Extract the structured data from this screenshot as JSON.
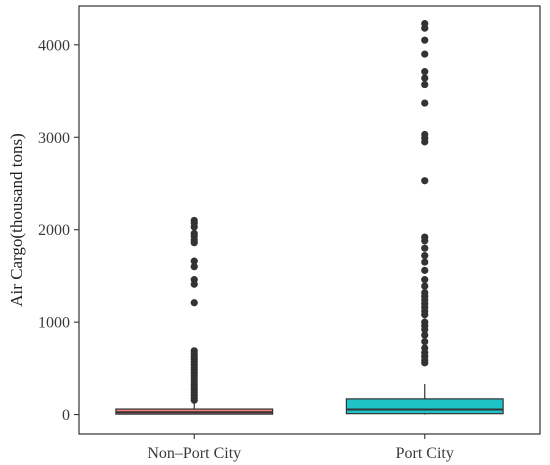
{
  "chart_data": {
    "type": "boxplot",
    "title": "",
    "xlabel": "",
    "ylabel": "Air Cargo(thousand tons)",
    "ylim": [
      -210,
      4420
    ],
    "yticks": [
      0,
      1000,
      2000,
      3000,
      4000
    ],
    "grid": false,
    "categories": [
      "Non–Port City",
      "Port City"
    ],
    "series": [
      {
        "category": "Non–Port City",
        "color": "#f08080",
        "stats": {
          "whisker_low": 0,
          "q1": 5,
          "median": 25,
          "q3": 60,
          "whisker_high": 130
        },
        "outliers": [
          2100,
          2070,
          2030,
          1960,
          1930,
          1890,
          1860,
          1660,
          1600,
          1460,
          1410,
          1210,
          690,
          660,
          630,
          600,
          570,
          540,
          510,
          480,
          450,
          420,
          390,
          360,
          330,
          300,
          270,
          240,
          210,
          180,
          155
        ]
      },
      {
        "category": "Port City",
        "color": "#1ec3c8",
        "stats": {
          "whisker_low": 0,
          "q1": 10,
          "median": 55,
          "q3": 170,
          "whisker_high": 330
        },
        "outliers": [
          4230,
          4180,
          4050,
          3900,
          3710,
          3640,
          3570,
          3370,
          3030,
          2990,
          2950,
          2530,
          1920,
          1880,
          1800,
          1720,
          1650,
          1560,
          1460,
          1390,
          1320,
          1280,
          1240,
          1200,
          1160,
          1120,
          1080,
          1000,
          960,
          920,
          860,
          790,
          720,
          670,
          630,
          590,
          560
        ]
      }
    ]
  }
}
